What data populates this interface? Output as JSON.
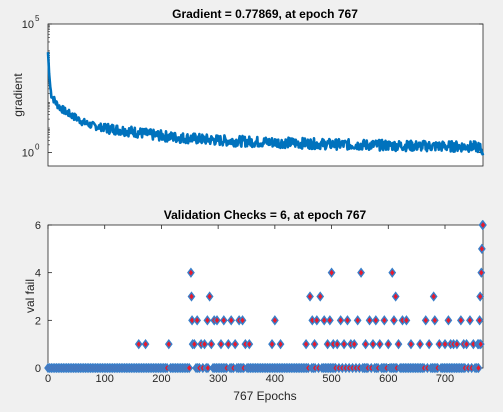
{
  "figure": {
    "background": "#f0f0f0"
  },
  "chart_data": [
    {
      "type": "line",
      "title": "Gradient = 0.77869, at epoch 767",
      "ylabel": "gradient",
      "xlabel": "",
      "yscale": "log",
      "ylim": [
        0.3,
        100000
      ],
      "xlim": [
        0,
        767
      ],
      "yticks": [
        {
          "value": 1,
          "base": "10",
          "exp": "0"
        },
        {
          "value": 100000,
          "base": "10",
          "exp": "5"
        }
      ],
      "xtick_labels_shown": false,
      "color": "#0072bd",
      "series": [
        {
          "x": [
            0,
            2,
            4,
            6,
            10,
            15,
            20,
            30,
            40,
            50,
            60,
            70,
            80,
            90,
            100,
            120,
            140,
            160,
            180,
            200,
            220,
            250,
            280,
            300,
            350,
            400,
            450,
            500,
            550,
            600,
            650,
            700,
            750,
            760,
            765,
            767
          ],
          "y": [
            8000,
            1200,
            350,
            180,
            120,
            80,
            60,
            40,
            30,
            22,
            16,
            13,
            11,
            10,
            9,
            8,
            7,
            6,
            5,
            4.5,
            4,
            3.6,
            3.2,
            3,
            2.7,
            2.5,
            2.3,
            2.1,
            2,
            1.9,
            1.8,
            1.75,
            1.7,
            1.6,
            1.2,
            0.77869
          ]
        }
      ]
    },
    {
      "type": "scatter",
      "title": "Validation Checks = 6, at epoch 767",
      "xlabel": "767 Epochs",
      "ylabel": "val fail",
      "xlim": [
        0,
        767
      ],
      "ylim": [
        0,
        6
      ],
      "xticks": [
        0,
        100,
        200,
        300,
        400,
        500,
        600,
        700
      ],
      "yticks": [
        0,
        2,
        4,
        6
      ],
      "marker": "diamond",
      "marker_edge": "#3a7fc9",
      "marker_face": "#e8192c",
      "series": [
        {
          "x": [
            160,
            172,
            213,
            252,
            253,
            254,
            255,
            258,
            263,
            270,
            276,
            281,
            285,
            288,
            293,
            298,
            305,
            310,
            318,
            323,
            330,
            337,
            343,
            348,
            355,
            395,
            400,
            410,
            455,
            462,
            466,
            470,
            474,
            480,
            487,
            493,
            497,
            500,
            503,
            510,
            516,
            522,
            528,
            534,
            540,
            546,
            552,
            560,
            567,
            573,
            578,
            585,
            593,
            600,
            607,
            610,
            613,
            618,
            625,
            632,
            640,
            656,
            666,
            672,
            680,
            682,
            690,
            700,
            706,
            710,
            715,
            721,
            728,
            733,
            738,
            744,
            750,
            758,
            760,
            761,
            762,
            763,
            764,
            765,
            766,
            767
          ],
          "y": [
            1,
            1,
            1,
            4,
            3,
            2,
            1,
            1,
            2,
            1,
            1,
            2,
            3,
            1,
            2,
            2,
            1,
            2,
            1,
            2,
            1,
            2,
            2,
            1,
            1,
            1,
            2,
            1,
            1,
            3,
            2,
            1,
            2,
            3,
            2,
            1,
            2,
            4,
            1,
            1,
            2,
            1,
            2,
            1,
            1,
            2,
            4,
            1,
            2,
            1,
            2,
            1,
            2,
            1,
            4,
            2,
            3,
            1,
            2,
            2,
            1,
            1,
            2,
            1,
            3,
            2,
            1,
            1,
            2,
            1,
            1,
            1,
            2,
            1,
            1,
            2,
            1,
            1,
            1,
            2,
            3,
            1,
            4,
            5,
            6,
            6
          ]
        }
      ]
    }
  ]
}
